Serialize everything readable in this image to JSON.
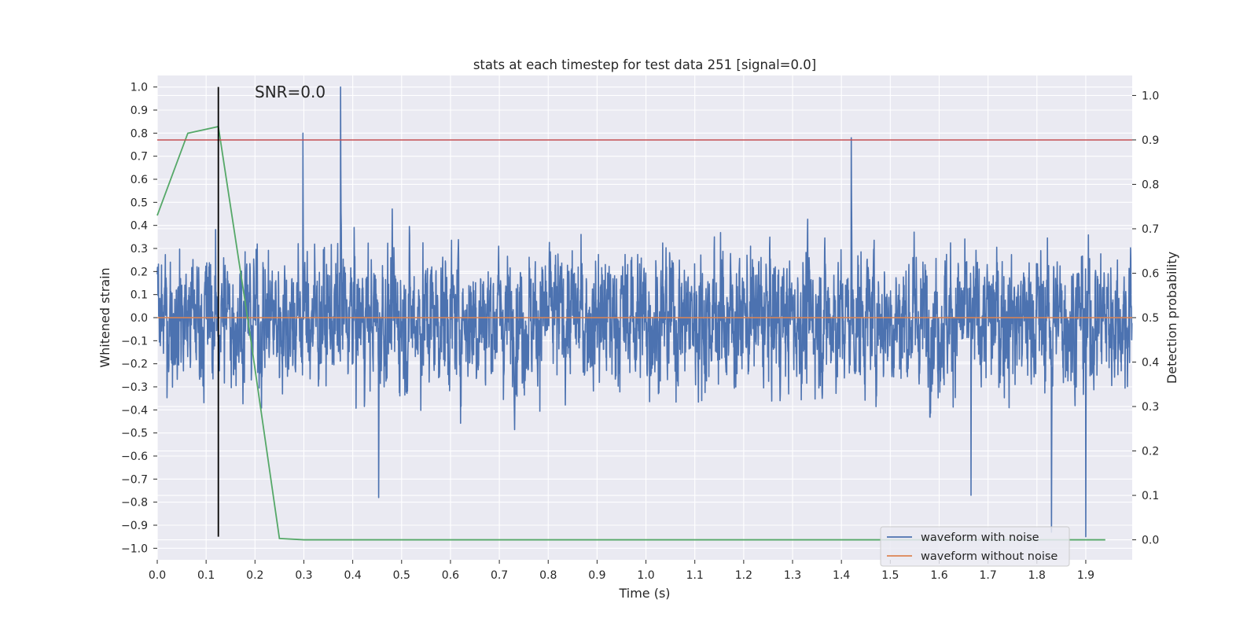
{
  "chart_data": {
    "type": "line",
    "title": "stats at each timestep for test data 251 [signal=0.0]",
    "xlabel": "Time (s)",
    "ylabel": "Whitened strain",
    "y2label": "Detection probability",
    "annotation": "SNR=0.0",
    "xlim": [
      0.0,
      1.995
    ],
    "ylim": [
      -1.05,
      1.05
    ],
    "y2lim": [
      -0.045,
      1.045
    ],
    "xticks": [
      "0.0",
      "0.1",
      "0.2",
      "0.3",
      "0.4",
      "0.5",
      "0.6",
      "0.7",
      "0.8",
      "0.9",
      "1.0",
      "1.1",
      "1.2",
      "1.3",
      "1.4",
      "1.5",
      "1.6",
      "1.7",
      "1.8",
      "1.9"
    ],
    "yticks": [
      "1.0",
      "0.9",
      "0.8",
      "0.7",
      "0.6",
      "0.5",
      "0.4",
      "0.3",
      "0.2",
      "0.1",
      "0.0",
      "−0.1",
      "−0.2",
      "−0.3",
      "−0.4",
      "−0.5",
      "−0.6",
      "−0.7",
      "−0.8",
      "−0.9",
      "−1.0"
    ],
    "y2ticks": [
      "1.0",
      "0.9",
      "0.8",
      "0.7",
      "0.6",
      "0.5",
      "0.4",
      "0.3",
      "0.2",
      "0.1",
      "0.0"
    ],
    "grid": true,
    "legend_position": "lower-right",
    "series": [
      {
        "name": "waveform with noise",
        "color": "#4c72b0",
        "axis": "left",
        "kind": "noise",
        "x_range": [
          0.0,
          1.995
        ],
        "samples": 4096,
        "notable_points": [
          [
            0.375,
            1.0
          ],
          [
            0.298,
            0.8
          ],
          [
            1.42,
            0.78
          ],
          [
            1.83,
            -0.93
          ],
          [
            1.9,
            -0.95
          ],
          [
            0.453,
            -0.78
          ],
          [
            1.665,
            -0.77
          ]
        ]
      },
      {
        "name": "waveform without noise",
        "color": "#dd8452",
        "axis": "left",
        "x": [
          0.0,
          1.995
        ],
        "y": [
          0.0,
          0.0
        ]
      },
      {
        "color": "#55a868",
        "axis": "right",
        "x": [
          0.0,
          0.0625,
          0.125,
          0.1875,
          0.25,
          0.3,
          0.5,
          0.75,
          1.0,
          1.25,
          1.5,
          1.75,
          1.94
        ],
        "y": [
          0.73,
          0.915,
          0.93,
          0.48,
          0.003,
          0.0,
          0.0,
          0.0,
          0.0,
          0.0,
          0.0,
          0.0,
          0.0
        ]
      }
    ],
    "hlines": [
      {
        "axis": "right",
        "y": 0.9,
        "color": "#c44e52"
      }
    ],
    "vlines": [
      {
        "x": 0.125,
        "y_range": [
          -0.95,
          1.0
        ],
        "color": "#000000"
      }
    ]
  }
}
